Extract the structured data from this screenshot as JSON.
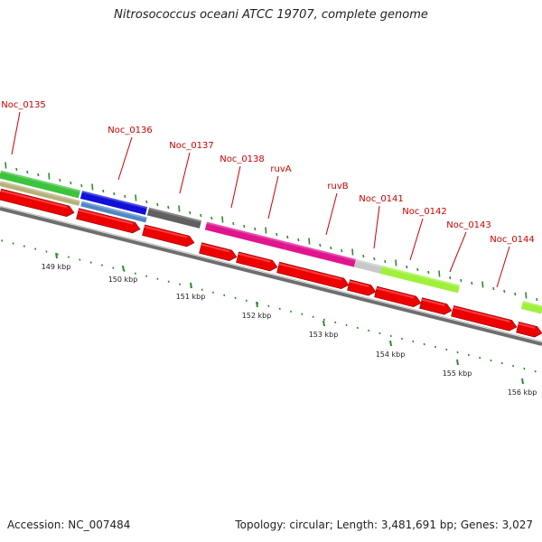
{
  "title": "Nitrosococcus oceani ATCC 19707, complete genome",
  "footer": {
    "accession": "Accession: NC_007484",
    "topology": "Topology: circular; Length: 3,481,691 bp; Genes: 3,027"
  },
  "colors": {
    "label": "#cc0000",
    "tick": "#2e8b2e",
    "cds_red": "#ee0000",
    "backbone": "#8c8c8c"
  },
  "gene_labels": [
    "Noc_0135",
    "Noc_0136",
    "Noc_0137",
    "Noc_0138",
    "ruvA",
    "ruvB",
    "Noc_0141",
    "Noc_0142",
    "Noc_0143",
    "Noc_0144"
  ],
  "kbp_labels": [
    "149 kbp",
    "150 kbp",
    "151 kbp",
    "152 kbp",
    "153 kbp",
    "154 kbp",
    "155 kbp",
    "156 kbp"
  ]
}
